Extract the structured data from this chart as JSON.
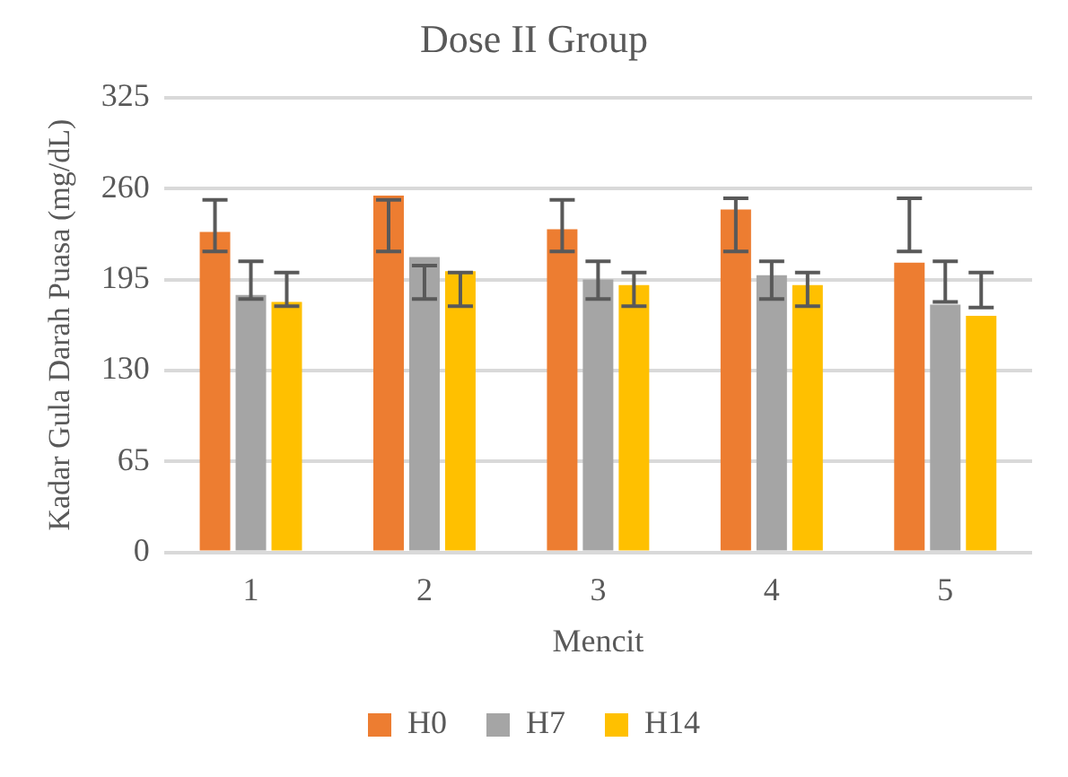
{
  "chart_data": {
    "type": "bar",
    "title": "Dose II Group",
    "xlabel": "Mencit",
    "ylabel": "Kadar Gula Darah Puasa (mg/dL)",
    "categories": [
      "1",
      "2",
      "3",
      "4",
      "5"
    ],
    "series": [
      {
        "name": "H0",
        "color": "#ed7d31",
        "values": [
          229,
          255,
          231,
          245,
          207
        ],
        "errors": [
          [
            215,
            252
          ],
          [
            215,
            252
          ],
          [
            215,
            252
          ],
          [
            215,
            253
          ],
          [
            215,
            253
          ]
        ]
      },
      {
        "name": "H7",
        "color": "#a5a5a5",
        "values": [
          184,
          211,
          195,
          198,
          177
        ],
        "errors": [
          [
            181,
            208
          ],
          [
            181,
            205
          ],
          [
            181,
            208
          ],
          [
            181,
            208
          ],
          [
            179,
            208
          ]
        ]
      },
      {
        "name": "H14",
        "color": "#ffc000",
        "values": [
          179,
          201,
          191,
          191,
          169
        ],
        "errors": [
          [
            176,
            200
          ],
          [
            176,
            200
          ],
          [
            176,
            200
          ],
          [
            176,
            200
          ],
          [
            175,
            200
          ]
        ]
      }
    ],
    "ylim": [
      0,
      325
    ],
    "yticks": [
      0,
      65,
      130,
      195,
      260,
      325
    ],
    "grid": "y",
    "legend": "bottom"
  }
}
